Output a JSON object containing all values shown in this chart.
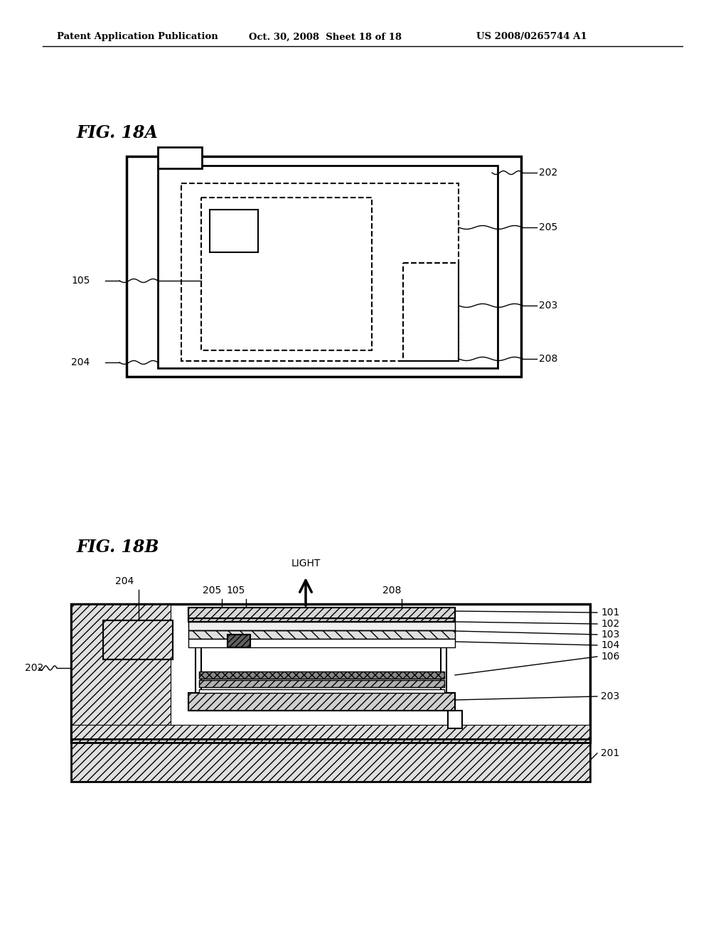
{
  "bg_color": "#ffffff",
  "header_text": "Patent Application Publication",
  "header_date": "Oct. 30, 2008  Sheet 18 of 18",
  "header_patent": "US 2008/0265744 A1",
  "fig18a_label": "FIG. 18A",
  "fig18b_label": "FIG. 18B"
}
